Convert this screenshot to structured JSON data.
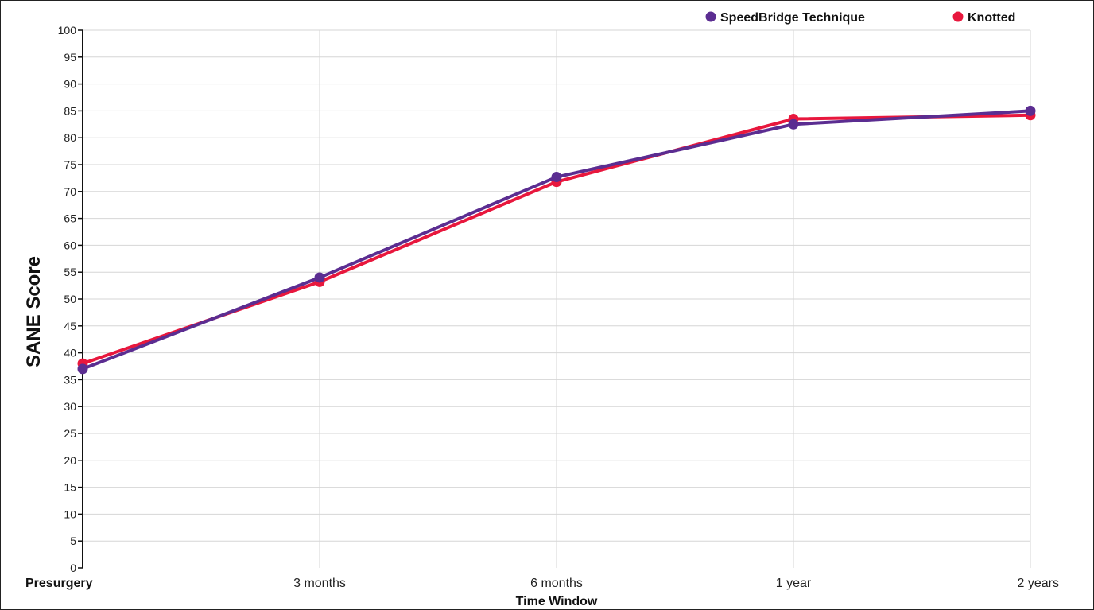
{
  "chart_data": {
    "type": "line",
    "title": "",
    "xlabel": "Time Window",
    "ylabel": "SANE Score",
    "categories": [
      "Presurgery",
      "3 months",
      "6 months",
      "1 year",
      "2 years"
    ],
    "ylim": [
      0,
      100
    ],
    "yticks": [
      0,
      5,
      10,
      15,
      20,
      25,
      30,
      35,
      40,
      45,
      50,
      55,
      60,
      65,
      70,
      75,
      80,
      85,
      90,
      95,
      100
    ],
    "grid": true,
    "legend_position": "top-right",
    "series": [
      {
        "name": "SpeedBridge Technique",
        "color": "#5b2d91",
        "values": [
          37,
          54,
          72.7,
          82.5,
          85
        ]
      },
      {
        "name": "Knotted",
        "color": "#e8173d",
        "values": [
          38,
          53.2,
          71.8,
          83.5,
          84.2
        ]
      }
    ]
  }
}
